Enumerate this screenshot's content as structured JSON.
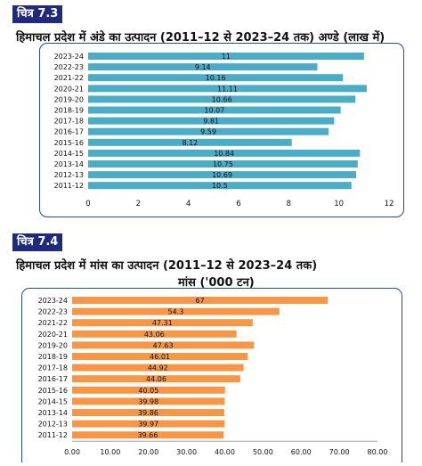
{
  "figures": [
    {
      "badge": "चित्र 7.3",
      "title": "हिमाचल प्रदेश में अंडे का उत्पादन (2011–12 से 2023–24 तक) अण्डे (लाख में)",
      "subtitle": ""
    },
    {
      "badge": "चित्र 7.4",
      "title": "हिमाचल प्रदेश में मांस का उत्पादन (2011–12 से 2023–24 तक)",
      "subtitle": "मांस ('000 टन)"
    }
  ],
  "chart_data": [
    {
      "type": "bar",
      "orientation": "horizontal",
      "title": "हिमाचल प्रदेश में अंडे का उत्पादन (2011–12 से 2023–24 तक) अण्डे (लाख में)",
      "categories": [
        "2023-24",
        "2022-23",
        "2021-22",
        "2020-21",
        "2019-20",
        "2018-19",
        "2017-18",
        "2016-17",
        "2015-16",
        "2014-15",
        "2013-14",
        "2012-13",
        "2011-12"
      ],
      "values": [
        11,
        9.14,
        10.16,
        11.11,
        10.66,
        10.07,
        9.81,
        9.59,
        8.12,
        10.84,
        10.75,
        10.69,
        10.5
      ],
      "value_labels": [
        "11",
        "9.14",
        "10.16",
        "11.11",
        "10.66",
        "10.07",
        "9.81",
        "9.59",
        "8.12",
        "10.84",
        "10.75",
        "10.69",
        "10.5"
      ],
      "xlim": [
        0,
        12
      ],
      "ticks": [
        0,
        2,
        4,
        6,
        8,
        10,
        12
      ],
      "tick_labels": [
        "0",
        "2",
        "4",
        "6",
        "8",
        "10",
        "12"
      ],
      "grid": false,
      "color": "#4bacc6"
    },
    {
      "type": "bar",
      "orientation": "horizontal",
      "title": "हिमाचल प्रदेश में मांस का उत्पादन (2011–12 से 2023–24 तक)",
      "subtitle": "मांस ('000 टन)",
      "categories": [
        "2023-24",
        "2022-23",
        "2021-22",
        "2020-21",
        "2019-20",
        "2018-19",
        "2017-18",
        "2016-17",
        "2015-16",
        "2014-15",
        "2013-14",
        "2012-13",
        "2011-12"
      ],
      "values": [
        67,
        54.3,
        47.31,
        43.06,
        47.63,
        46.01,
        44.92,
        44.06,
        40.05,
        39.98,
        39.86,
        39.97,
        39.66
      ],
      "value_labels": [
        "67",
        "54.3",
        "47.31",
        "43.06",
        "47.63",
        "46.01",
        "44.92",
        "44.06",
        "40.05",
        "39.98",
        "39.86",
        "39.97",
        "39.66"
      ],
      "xlim": [
        0,
        80
      ],
      "ticks": [
        0,
        10,
        20,
        30,
        40,
        50,
        60,
        70,
        80
      ],
      "tick_labels": [
        "0.00",
        "10.00",
        "20.00",
        "30.00",
        "40.00",
        "50.00",
        "60.00",
        "70.00",
        "80.00"
      ],
      "grid": false,
      "color": "#f79646"
    }
  ]
}
